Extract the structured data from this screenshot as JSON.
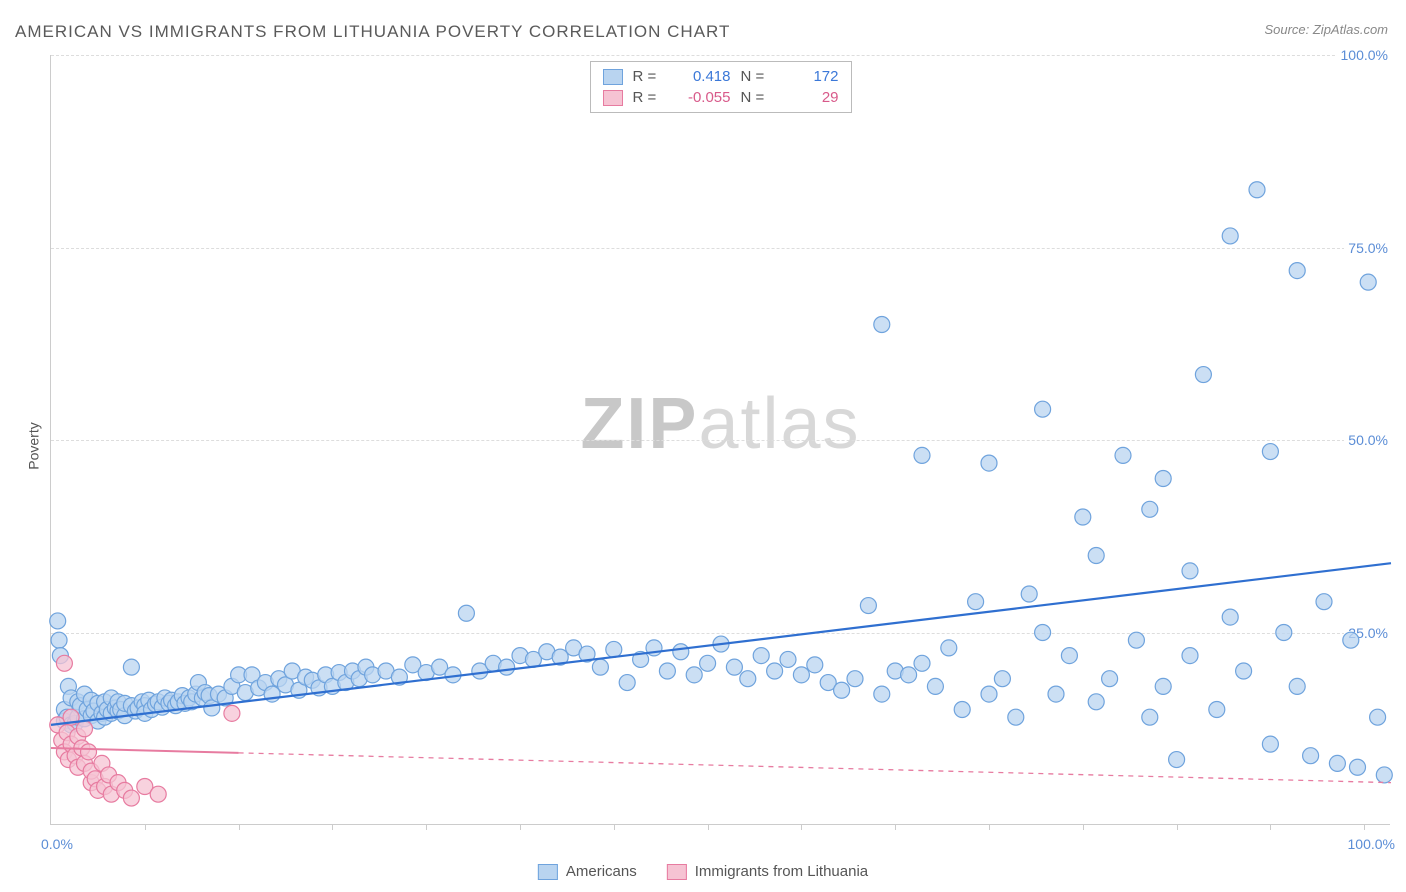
{
  "title": "AMERICAN VS IMMIGRANTS FROM LITHUANIA POVERTY CORRELATION CHART",
  "source": "Source: ZipAtlas.com",
  "ylabel": "Poverty",
  "watermark": {
    "bold": "ZIP",
    "light": "atlas"
  },
  "chart": {
    "type": "scatter",
    "xlim": [
      0,
      100
    ],
    "ylim": [
      0,
      100
    ],
    "yticks": [
      25,
      50,
      75,
      100
    ],
    "ytick_labels": [
      "25.0%",
      "50.0%",
      "75.0%",
      "100.0%"
    ],
    "x_origin_label": "0.0%",
    "x_end_label": "100.0%",
    "xtick_marks": [
      7,
      14,
      21,
      28,
      35,
      42,
      49,
      56,
      63,
      70,
      77,
      84,
      91,
      98
    ],
    "background_color": "#ffffff",
    "grid_color": "#dddddd",
    "axis_color": "#cccccc",
    "tick_text_color": "#5b8dd6",
    "marker_radius": 8,
    "marker_stroke_width": 1.2,
    "series": [
      {
        "name": "Americans",
        "fill": "#b9d4f0",
        "stroke": "#6fa3dd",
        "fill_opacity": 0.75,
        "R": "0.418",
        "N": "172",
        "stat_color": "#3b78d8",
        "trend": {
          "x1": 0,
          "y1": 13,
          "x2": 100,
          "y2": 34,
          "color": "#2f6fd0",
          "width": 2.2,
          "dash": "none"
        },
        "points": [
          [
            0.5,
            26.5
          ],
          [
            0.6,
            24
          ],
          [
            0.7,
            22
          ],
          [
            1,
            15
          ],
          [
            1,
            13.5
          ],
          [
            1.2,
            14
          ],
          [
            1.3,
            18
          ],
          [
            1.5,
            13
          ],
          [
            1.5,
            16.5
          ],
          [
            1.8,
            13.2
          ],
          [
            2,
            14
          ],
          [
            2,
            16
          ],
          [
            2.2,
            15.5
          ],
          [
            2.5,
            13.8
          ],
          [
            2.5,
            17
          ],
          [
            2.7,
            15
          ],
          [
            3,
            14.2
          ],
          [
            3,
            16.2
          ],
          [
            3.2,
            14.8
          ],
          [
            3.5,
            13.5
          ],
          [
            3.5,
            15.8
          ],
          [
            3.8,
            14.5
          ],
          [
            4,
            16
          ],
          [
            4,
            14
          ],
          [
            4.2,
            15
          ],
          [
            4.5,
            14.5
          ],
          [
            4.5,
            16.5
          ],
          [
            4.8,
            15.2
          ],
          [
            5,
            14.8
          ],
          [
            5,
            16
          ],
          [
            5.2,
            15
          ],
          [
            5.5,
            14.2
          ],
          [
            5.5,
            15.8
          ],
          [
            6,
            15.5
          ],
          [
            6,
            20.5
          ],
          [
            6.3,
            14.8
          ],
          [
            6.5,
            15.2
          ],
          [
            6.8,
            16
          ],
          [
            7,
            15.5
          ],
          [
            7,
            14.5
          ],
          [
            7.3,
            16.2
          ],
          [
            7.5,
            15
          ],
          [
            7.8,
            15.7
          ],
          [
            8,
            16
          ],
          [
            8.3,
            15.3
          ],
          [
            8.5,
            16.5
          ],
          [
            8.8,
            15.8
          ],
          [
            9,
            16.2
          ],
          [
            9.3,
            15.5
          ],
          [
            9.5,
            16
          ],
          [
            9.8,
            16.8
          ],
          [
            10,
            15.8
          ],
          [
            10.3,
            16.5
          ],
          [
            10.5,
            16
          ],
          [
            10.8,
            17
          ],
          [
            11,
            18.5
          ],
          [
            11.3,
            16.5
          ],
          [
            11.5,
            17.2
          ],
          [
            11.8,
            16.8
          ],
          [
            12,
            15.2
          ],
          [
            12.5,
            17
          ],
          [
            13,
            16.5
          ],
          [
            13.5,
            18
          ],
          [
            14,
            19.5
          ],
          [
            14.5,
            17.2
          ],
          [
            15,
            19.5
          ],
          [
            15.5,
            17.8
          ],
          [
            16,
            18.5
          ],
          [
            16.5,
            17
          ],
          [
            17,
            19
          ],
          [
            17.5,
            18.2
          ],
          [
            18,
            20
          ],
          [
            18.5,
            17.5
          ],
          [
            19,
            19.2
          ],
          [
            19.5,
            18.8
          ],
          [
            20,
            17.8
          ],
          [
            20.5,
            19.5
          ],
          [
            21,
            18
          ],
          [
            21.5,
            19.8
          ],
          [
            22,
            18.5
          ],
          [
            22.5,
            20
          ],
          [
            23,
            19
          ],
          [
            23.5,
            20.5
          ],
          [
            24,
            19.5
          ],
          [
            25,
            20
          ],
          [
            26,
            19.2
          ],
          [
            27,
            20.8
          ],
          [
            28,
            19.8
          ],
          [
            29,
            20.5
          ],
          [
            30,
            19.5
          ],
          [
            31,
            27.5
          ],
          [
            32,
            20
          ],
          [
            33,
            21
          ],
          [
            34,
            20.5
          ],
          [
            35,
            22
          ],
          [
            36,
            21.5
          ],
          [
            37,
            22.5
          ],
          [
            38,
            21.8
          ],
          [
            39,
            23
          ],
          [
            40,
            22.2
          ],
          [
            41,
            20.5
          ],
          [
            42,
            22.8
          ],
          [
            43,
            18.5
          ],
          [
            44,
            21.5
          ],
          [
            45,
            23
          ],
          [
            46,
            20
          ],
          [
            47,
            22.5
          ],
          [
            48,
            19.5
          ],
          [
            49,
            21
          ],
          [
            50,
            23.5
          ],
          [
            51,
            20.5
          ],
          [
            52,
            19
          ],
          [
            53,
            22
          ],
          [
            54,
            20
          ],
          [
            55,
            21.5
          ],
          [
            56,
            19.5
          ],
          [
            57,
            20.8
          ],
          [
            58,
            18.5
          ],
          [
            59,
            17.5
          ],
          [
            60,
            19
          ],
          [
            61,
            28.5
          ],
          [
            62,
            17
          ],
          [
            62,
            65
          ],
          [
            63,
            20
          ],
          [
            64,
            19.5
          ],
          [
            65,
            21
          ],
          [
            65,
            48
          ],
          [
            66,
            18
          ],
          [
            67,
            23
          ],
          [
            68,
            15
          ],
          [
            69,
            29
          ],
          [
            70,
            17
          ],
          [
            70,
            47
          ],
          [
            71,
            19
          ],
          [
            72,
            14
          ],
          [
            73,
            30
          ],
          [
            74,
            25
          ],
          [
            74,
            54
          ],
          [
            75,
            17
          ],
          [
            76,
            22
          ],
          [
            77,
            40
          ],
          [
            78,
            16
          ],
          [
            78,
            35
          ],
          [
            79,
            19
          ],
          [
            80,
            48
          ],
          [
            81,
            24
          ],
          [
            82,
            14
          ],
          [
            82,
            41
          ],
          [
            83,
            18
          ],
          [
            83,
            45
          ],
          [
            84,
            8.5
          ],
          [
            85,
            22
          ],
          [
            85,
            33
          ],
          [
            86,
            58.5
          ],
          [
            87,
            15
          ],
          [
            88,
            27
          ],
          [
            88,
            76.5
          ],
          [
            89,
            20
          ],
          [
            90,
            82.5
          ],
          [
            91,
            10.5
          ],
          [
            91,
            48.5
          ],
          [
            92,
            25
          ],
          [
            93,
            18
          ],
          [
            93,
            72
          ],
          [
            94,
            9
          ],
          [
            95,
            29
          ],
          [
            96,
            8
          ],
          [
            97,
            24
          ],
          [
            97.5,
            7.5
          ],
          [
            98.3,
            70.5
          ],
          [
            99,
            14
          ],
          [
            99.5,
            6.5
          ]
        ]
      },
      {
        "name": "Immigrants from Lithuania",
        "fill": "#f6c3d3",
        "stroke": "#e77ba0",
        "fill_opacity": 0.75,
        "R": "-0.055",
        "N": "29",
        "stat_color": "#d85a8a",
        "trend": {
          "x1": 0,
          "y1": 10,
          "x2": 100,
          "y2": 5.5,
          "color": "#e77ba0",
          "width": 1.3,
          "dash": "5,5",
          "solid_until": 14
        },
        "points": [
          [
            0.5,
            13
          ],
          [
            0.8,
            11
          ],
          [
            1,
            9.5
          ],
          [
            1,
            21
          ],
          [
            1.2,
            12
          ],
          [
            1.3,
            8.5
          ],
          [
            1.5,
            10.5
          ],
          [
            1.5,
            14
          ],
          [
            1.8,
            9
          ],
          [
            2,
            11.5
          ],
          [
            2,
            7.5
          ],
          [
            2.3,
            10
          ],
          [
            2.5,
            8
          ],
          [
            2.5,
            12.5
          ],
          [
            2.8,
            9.5
          ],
          [
            3,
            5.5
          ],
          [
            3,
            7
          ],
          [
            3.3,
            6
          ],
          [
            3.5,
            4.5
          ],
          [
            3.8,
            8
          ],
          [
            4,
            5
          ],
          [
            4.3,
            6.5
          ],
          [
            4.5,
            4
          ],
          [
            5,
            5.5
          ],
          [
            5.5,
            4.5
          ],
          [
            6,
            3.5
          ],
          [
            7,
            5
          ],
          [
            8,
            4
          ],
          [
            13.5,
            14.5
          ]
        ]
      }
    ]
  },
  "legend": {
    "series1_label": "Americans",
    "series2_label": "Immigrants from Lithuania"
  },
  "stats_labels": {
    "R": "R =",
    "N": "N ="
  }
}
